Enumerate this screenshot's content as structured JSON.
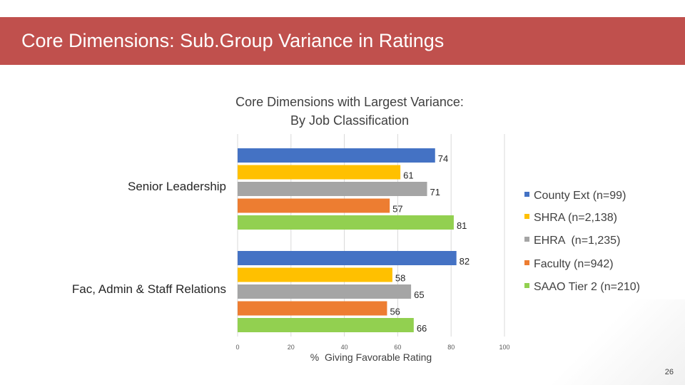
{
  "header": {
    "title": "Core Dimensions: Sub.Group Variance in Ratings"
  },
  "chart_data": {
    "type": "bar",
    "orientation": "horizontal",
    "title_lines": [
      "Core Dimensions with Largest Variance:",
      "By Job Classification"
    ],
    "categories": [
      "Senior Leadership",
      "Fac, Admin & Staff Relations"
    ],
    "series": [
      {
        "name": "County Ext (n=99)",
        "color": "#4472c4",
        "values": [
          74,
          82
        ]
      },
      {
        "name": "SHRA (n=2,138)",
        "color": "#ffc000",
        "values": [
          61,
          58
        ]
      },
      {
        "name": "EHRA  (n=1,235)",
        "color": "#a5a5a5",
        "values": [
          71,
          65
        ]
      },
      {
        "name": "Faculty (n=942)",
        "color": "#ed7d31",
        "values": [
          57,
          56
        ]
      },
      {
        "name": "SAAO Tier 2 (n=210)",
        "color": "#92d050",
        "values": [
          81,
          66
        ]
      }
    ],
    "xlabel": "%  Giving Favorable Rating",
    "ylabel": "",
    "xlim": [
      0,
      100
    ],
    "xticks": [
      0,
      20,
      40,
      60,
      80,
      100
    ],
    "grid": true,
    "legend_position": "right"
  },
  "footer": {
    "page_number": "26"
  }
}
